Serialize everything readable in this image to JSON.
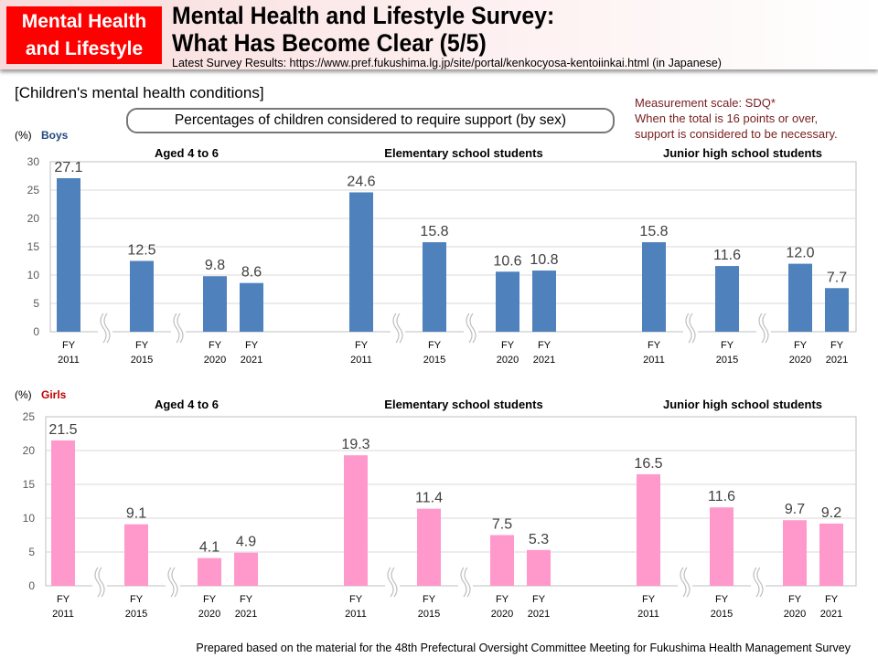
{
  "header": {
    "badge_line1": "Mental Health",
    "badge_line2": "and Lifestyle",
    "title_line1": "Mental Health and Lifestyle Survey:",
    "title_line2": "What Has Become Clear (5/5)",
    "subtitle": "Latest Survey Results: https://www.pref.fukushima.lg.jp/site/portal/kenkocyosa-kentoiinkai.html (in Japanese)"
  },
  "section_title": "[Children's mental health conditions]",
  "pill_label": "Percentages of children considered to require support (by sex)",
  "note": {
    "line1": "Measurement scale: SDQ*",
    "line2": "When the total is 16 points or over,",
    "line3": "support is considered to be necessary."
  },
  "credit": "Prepared based on the material for the 48th Prefectural Oversight Committee Meeting for Fukushima Health Management Survey",
  "colors": {
    "boys": "#4f81bd",
    "girls": "#ff99cc",
    "boys_label": "#1f497d",
    "girls_label": "#c00000",
    "note": "#7a2020"
  },
  "chart_data": [
    {
      "type": "bar",
      "unit_label": "(%)",
      "series_label": "Boys",
      "ylim": [
        0,
        30
      ],
      "yticks": [
        0,
        5,
        10,
        15,
        20,
        25,
        30
      ],
      "grid": true,
      "groups": [
        {
          "title": "Aged 4 to 6",
          "categories": [
            "FY 2011",
            "FY 2015",
            "FY 2020",
            "FY 2021"
          ],
          "values": [
            27.1,
            12.5,
            9.8,
            8.6
          ]
        },
        {
          "title": "Elementary school students",
          "categories": [
            "FY 2011",
            "FY 2015",
            "FY 2020",
            "FY 2021"
          ],
          "values": [
            24.6,
            15.8,
            10.6,
            10.8
          ]
        },
        {
          "title": "Junior high school students",
          "categories": [
            "FY 2011",
            "FY 2015",
            "FY 2020",
            "FY 2021"
          ],
          "values": [
            15.8,
            11.6,
            12.0,
            7.7
          ]
        }
      ]
    },
    {
      "type": "bar",
      "unit_label": "(%)",
      "series_label": "Girls",
      "ylim": [
        0,
        25
      ],
      "yticks": [
        0,
        5,
        10,
        15,
        20,
        25
      ],
      "grid": true,
      "groups": [
        {
          "title": "Aged 4 to 6",
          "categories": [
            "FY 2011",
            "FY 2015",
            "FY 2020",
            "FY 2021"
          ],
          "values": [
            21.5,
            9.1,
            4.1,
            4.9
          ]
        },
        {
          "title": "Elementary school students",
          "categories": [
            "FY 2011",
            "FY 2015",
            "FY 2020",
            "FY 2021"
          ],
          "values": [
            19.3,
            11.4,
            7.5,
            5.3
          ]
        },
        {
          "title": "Junior high school students",
          "categories": [
            "FY 2011",
            "FY 2015",
            "FY 2020",
            "FY 2021"
          ],
          "values": [
            16.5,
            11.6,
            9.7,
            9.2
          ]
        }
      ]
    }
  ]
}
